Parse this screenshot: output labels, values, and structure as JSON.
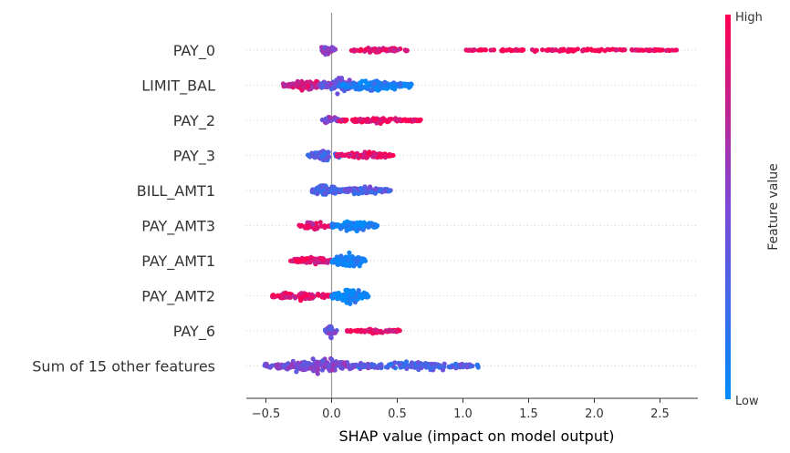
{
  "chart_data": {
    "type": "scatter",
    "subtype": "shap-beeswarm",
    "title": "",
    "xlabel": "SHAP value (impact on model output)",
    "ylabel": "",
    "xlim": [
      -0.65,
      2.75
    ],
    "xticks": [
      -0.5,
      0.0,
      0.5,
      1.0,
      1.5,
      2.0,
      2.5
    ],
    "xtick_labels": [
      "−0.5",
      "0.0",
      "0.5",
      "1.0",
      "1.5",
      "2.0",
      "2.5"
    ],
    "colorbar": {
      "label": "Feature value",
      "high": "High",
      "low": "Low",
      "low_color": "#008bfb",
      "high_color": "#ff0052"
    },
    "features": [
      {
        "name": "PAY_0",
        "clusters": [
          {
            "from": -0.09,
            "to": 0.03,
            "feat": 0.55,
            "spread": 0.8,
            "n": 45
          },
          {
            "from": 0.15,
            "to": 0.58,
            "feat": 0.9,
            "spread": 0.4,
            "n": 60
          },
          {
            "from": 1.02,
            "to": 2.63,
            "feat": 1.0,
            "spread": 0.2,
            "n": 150
          }
        ]
      },
      {
        "name": "LIMIT_BAL",
        "clusters": [
          {
            "from": -0.37,
            "to": 0.0,
            "feat": 0.8,
            "spread": 0.7,
            "n": 110
          },
          {
            "from": -0.1,
            "to": 0.2,
            "feat": 0.45,
            "spread": 1.0,
            "n": 90
          },
          {
            "from": 0.05,
            "to": 0.62,
            "feat": 0.1,
            "spread": 0.8,
            "n": 150
          }
        ]
      },
      {
        "name": "PAY_2",
        "clusters": [
          {
            "from": -0.08,
            "to": 0.06,
            "feat": 0.55,
            "spread": 0.6,
            "n": 35
          },
          {
            "from": 0.05,
            "to": 0.68,
            "feat": 0.95,
            "spread": 0.35,
            "n": 110
          }
        ]
      },
      {
        "name": "PAY_3",
        "clusters": [
          {
            "from": -0.18,
            "to": 0.06,
            "feat": 0.3,
            "spread": 0.7,
            "n": 55
          },
          {
            "from": 0.04,
            "to": 0.47,
            "feat": 0.92,
            "spread": 0.45,
            "n": 110
          }
        ]
      },
      {
        "name": "BILL_AMT1",
        "clusters": [
          {
            "from": -0.16,
            "to": 0.06,
            "feat": 0.3,
            "spread": 0.9,
            "n": 90
          },
          {
            "from": 0.05,
            "to": 0.45,
            "feat": 0.35,
            "spread": 0.6,
            "n": 110
          }
        ]
      },
      {
        "name": "PAY_AMT3",
        "clusters": [
          {
            "from": -0.25,
            "to": 0.0,
            "feat": 0.85,
            "spread": 0.6,
            "n": 45
          },
          {
            "from": 0.0,
            "to": 0.35,
            "feat": 0.05,
            "spread": 0.7,
            "n": 140
          }
        ]
      },
      {
        "name": "PAY_AMT1",
        "clusters": [
          {
            "from": -0.32,
            "to": 0.0,
            "feat": 0.9,
            "spread": 0.5,
            "n": 80
          },
          {
            "from": 0.0,
            "to": 0.26,
            "feat": 0.05,
            "spread": 1.0,
            "n": 110
          }
        ]
      },
      {
        "name": "PAY_AMT2",
        "clusters": [
          {
            "from": -0.47,
            "to": 0.0,
            "feat": 0.9,
            "spread": 0.55,
            "n": 95
          },
          {
            "from": 0.0,
            "to": 0.28,
            "feat": 0.08,
            "spread": 1.0,
            "n": 120
          }
        ]
      },
      {
        "name": "PAY_6",
        "clusters": [
          {
            "from": -0.05,
            "to": 0.04,
            "feat": 0.45,
            "spread": 1.0,
            "n": 35
          },
          {
            "from": 0.11,
            "to": 0.52,
            "feat": 0.95,
            "spread": 0.4,
            "n": 75
          }
        ]
      },
      {
        "name": "Sum of 15 other features",
        "clusters": [
          {
            "from": -0.51,
            "to": 0.3,
            "feat": 0.5,
            "spread": 1.0,
            "n": 190
          },
          {
            "from": 0.2,
            "to": 1.15,
            "feat": 0.3,
            "spread": 0.6,
            "n": 150
          }
        ]
      }
    ]
  }
}
